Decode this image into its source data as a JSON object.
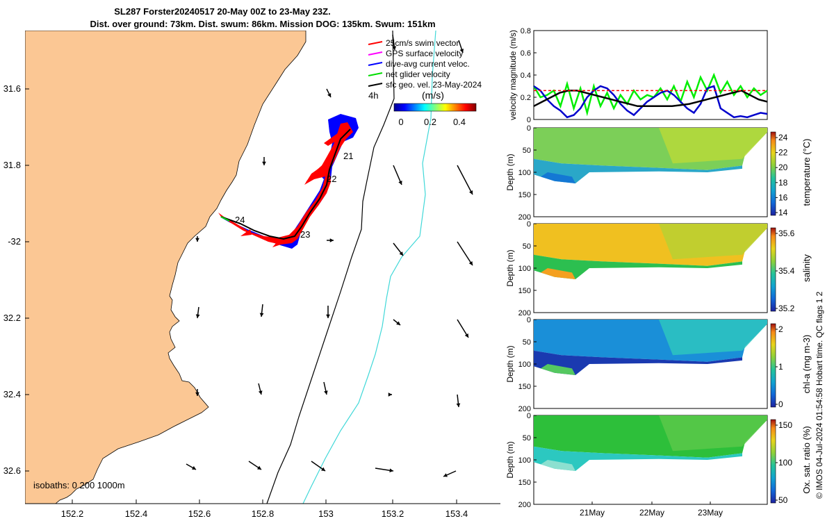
{
  "title_line1": "SL287 Forster20240517 20-May 00Z to 23-May 23Z.",
  "title_line2": "Dist. over ground: 73km. Dist. swum: 86km. Mission DOG: 135km. Swum: 151km",
  "map": {
    "lon_ticks": [
      "152.2",
      "152.4",
      "152.6",
      "152.8",
      "153",
      "153.2",
      "153.4"
    ],
    "lat_ticks": [
      "31.6",
      "31.8",
      "-32",
      "32.2",
      "32.4",
      "32.6"
    ],
    "isobaths_label": "isobaths: 0   200  1000m",
    "legend": [
      {
        "label": "25cm/s swim vector",
        "color": "#ff0000"
      },
      {
        "label": "GPS surface velocity",
        "color": "#ff00ff"
      },
      {
        "label": "dive-avg current veloc.",
        "color": "#0000ff"
      },
      {
        "label": "net glider velocity",
        "color": "#00dd00"
      },
      {
        "label": "sfc geo. vel. 23-May-2024",
        "color": "#000000"
      }
    ],
    "track_labels": [
      "21",
      "22",
      "23",
      "24"
    ],
    "colorbar": {
      "label": "(m/s)",
      "prefix": "4h",
      "ticks": [
        "0",
        "0.2",
        "0.4"
      ]
    },
    "colors": {
      "land": "#fbc794",
      "isobath_200": "#000000",
      "isobath_1000": "#40d8d8"
    }
  },
  "chart_data": [
    {
      "type": "line",
      "title": "",
      "ylabel": "velocity magnitude (m/s)",
      "ylim": [
        0,
        0.8
      ],
      "yticks": [
        "0",
        "0.2",
        "0.4",
        "0.6",
        "0.8"
      ],
      "series": [
        {
          "color": "#00ee00",
          "values": [
            0.3,
            0.2,
            0.22,
            0.26,
            0.12,
            0.32,
            0.1,
            0.28,
            0.06,
            0.3,
            0.12,
            0.24,
            0.1,
            0.22,
            0.14,
            0.26,
            0.18,
            0.22,
            0.2,
            0.28,
            0.18,
            0.3,
            0.16,
            0.34,
            0.2,
            0.38,
            0.26,
            0.4,
            0.24,
            0.34,
            0.22,
            0.3,
            0.2,
            0.28,
            0.22,
            0.26
          ]
        },
        {
          "color": "#0000cc",
          "values": [
            0.3,
            0.26,
            0.18,
            0.12,
            0.08,
            0.02,
            0.04,
            0.1,
            0.2,
            0.26,
            0.3,
            0.28,
            0.22,
            0.14,
            0.08,
            0.04,
            0.1,
            0.16,
            0.2,
            0.24,
            0.26,
            0.22,
            0.16,
            0.1,
            0.06,
            0.14,
            0.28,
            0.3,
            0.1,
            0.06,
            0.02,
            0.03,
            0.02,
            0.04,
            0.06,
            0.05
          ]
        },
        {
          "color": "#000000",
          "values": [
            0.12,
            0.16,
            0.2,
            0.24,
            0.26,
            0.26,
            0.24,
            0.22,
            0.2,
            0.18,
            0.16,
            0.14,
            0.12,
            0.12,
            0.12,
            0.12,
            0.12,
            0.13,
            0.14,
            0.16,
            0.18,
            0.2,
            0.22,
            0.24,
            0.26,
            0.22,
            0.18,
            0.16
          ]
        },
        {
          "color": "#ff0000",
          "values": [
            0.26,
            0.26,
            0.26,
            0.26,
            0.26,
            0.26,
            0.26,
            0.26
          ]
        }
      ]
    },
    {
      "type": "heatmap",
      "ylabel": "Depth (m)",
      "cbar_label": "temperature (°C)",
      "ylim": [
        0,
        200
      ],
      "yticks": [
        "0",
        "50",
        "100",
        "150",
        "200"
      ],
      "cbar_ticks": [
        "14",
        "16",
        "18",
        "20",
        "22",
        "24"
      ]
    },
    {
      "type": "heatmap",
      "ylabel": "Depth (m)",
      "cbar_label": "salinity",
      "ylim": [
        0,
        200
      ],
      "yticks": [
        "0",
        "50",
        "100",
        "150",
        "200"
      ],
      "cbar_ticks": [
        "35.2",
        "35.4",
        "35.6"
      ]
    },
    {
      "type": "heatmap",
      "ylabel": "Depth (m)",
      "cbar_label": "chl-a (mg m-3)",
      "ylim": [
        0,
        200
      ],
      "yticks": [
        "0",
        "50",
        "100",
        "150",
        "200"
      ],
      "cbar_ticks": [
        "0",
        "1",
        "2"
      ]
    },
    {
      "type": "heatmap",
      "ylabel": "Depth (m)",
      "cbar_label": "Ox. sat. ratio (%)",
      "ylim": [
        0,
        200
      ],
      "yticks": [
        "0",
        "50",
        "100",
        "150",
        "200"
      ],
      "cbar_ticks": [
        "50",
        "100",
        "150"
      ],
      "xticks": [
        "21May",
        "22May",
        "23May"
      ]
    }
  ],
  "stamp": "© IMOS 04-Jul-2024 01:54:58 Hobart time. QC flags 1  2"
}
